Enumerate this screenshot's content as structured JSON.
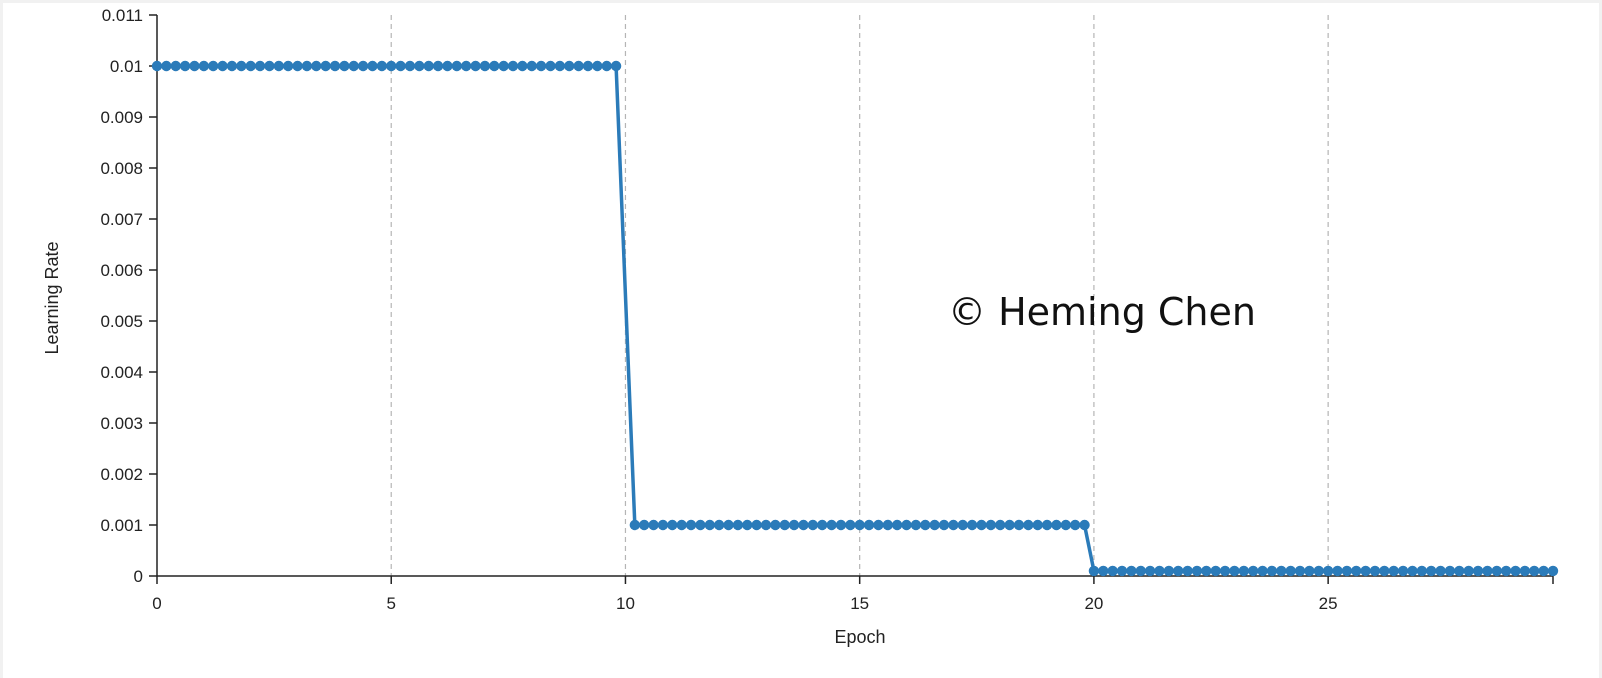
{
  "chart_data": {
    "type": "line",
    "xlabel": "Epoch",
    "ylabel": "Learning Rate",
    "xlim": [
      0,
      29.8
    ],
    "ylim": [
      0,
      0.011
    ],
    "x_ticks": [
      0,
      5,
      10,
      15,
      20,
      25
    ],
    "x_tick_labels": [
      "0",
      "5",
      "10",
      "15",
      "20",
      "25"
    ],
    "y_ticks": [
      0,
      0.001,
      0.002,
      0.003,
      0.004,
      0.005,
      0.006,
      0.007,
      0.008,
      0.009,
      0.01,
      0.011
    ],
    "y_tick_labels": [
      "0",
      "0.001",
      "0.002",
      "0.003",
      "0.004",
      "0.005",
      "0.006",
      "0.007",
      "0.008",
      "0.009",
      "0.01",
      "0.011"
    ],
    "grid": "vertical dashed",
    "series": [
      {
        "color": "#2b7bb9",
        "marker": "circle",
        "points_per_epoch": 5,
        "segments": [
          {
            "x_start": 0,
            "x_end": 9.8,
            "y": 0.01
          },
          {
            "x_start": 10.2,
            "x_end": 19.8,
            "y": 0.001
          },
          {
            "x_start": 20.0,
            "x_end": 29.8,
            "y": 0.0001
          }
        ]
      }
    ]
  },
  "watermark": "© Heming Chen",
  "colors": {
    "line": "#2b7bb9",
    "axis": "#222222",
    "grid": "#b5b5b5"
  }
}
